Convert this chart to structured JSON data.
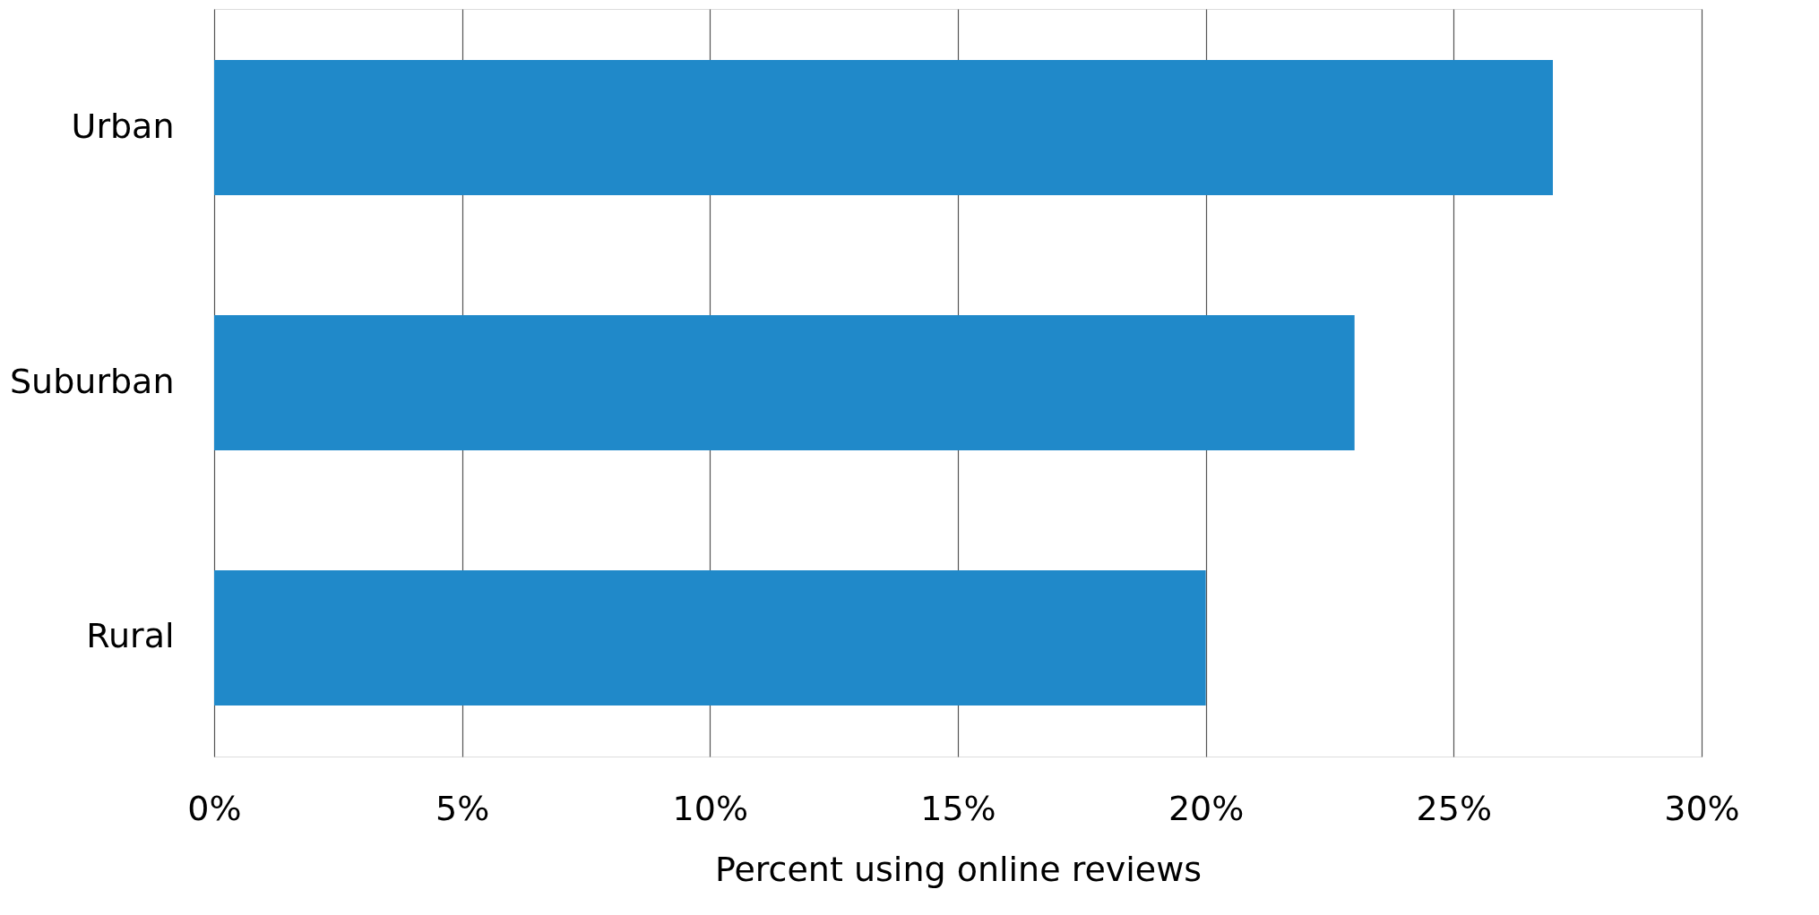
{
  "chart_data": {
    "type": "bar",
    "orientation": "horizontal",
    "xlabel": "Percent using online reviews",
    "categories": [
      "Urban",
      "Suburban",
      "Rural"
    ],
    "values": [
      27,
      23,
      20
    ],
    "color": "#2089c9",
    "xlim": [
      0,
      30
    ],
    "xticks": [
      {
        "value": 0,
        "label": "0%"
      },
      {
        "value": 5,
        "label": "5%"
      },
      {
        "value": 10,
        "label": "10%"
      },
      {
        "value": 15,
        "label": "15%"
      },
      {
        "value": 20,
        "label": "20%"
      },
      {
        "value": 25,
        "label": "25%"
      },
      {
        "value": 30,
        "label": "30%"
      }
    ],
    "grid": "x"
  }
}
